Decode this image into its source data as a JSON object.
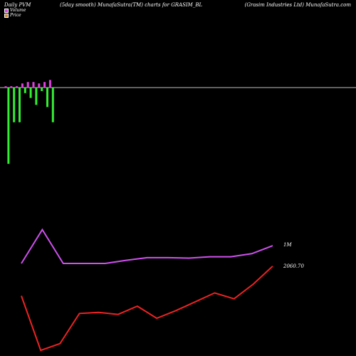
{
  "header": {
    "left": "Daily PVM",
    "middle": "(5day smooth) MunafaSutra(TM) charts for GRASIM_BL",
    "right": "(Grasim Industries Ltd) MunafaSutra.com"
  },
  "legend": [
    {
      "label": "Volume",
      "color": "#e040e0"
    },
    {
      "label": "Price",
      "color": "#d08a30"
    }
  ],
  "colors": {
    "background": "#000000",
    "zero_line": "#c0c0c0",
    "bar_positive": "#e040e0",
    "bar_negative": "#33ee33",
    "volume_line": "#d050f0",
    "price_line": "#ee2222",
    "label_text": "#ffffff"
  },
  "chart_data": {
    "type": "bar",
    "title": "(5day smooth) MunafaSutra(TM) charts for GRASIM_BL",
    "pvm_bars": [
      {
        "value": 2,
        "sign": "+"
      },
      {
        "value": -110,
        "sign": "-"
      },
      {
        "value": 2,
        "sign": "+"
      },
      {
        "value": -50,
        "sign": "-"
      },
      {
        "value": 2,
        "sign": "+"
      },
      {
        "value": -50,
        "sign": "-"
      },
      {
        "value": 6,
        "sign": "+"
      },
      {
        "value": -8,
        "sign": "-"
      },
      {
        "value": 8,
        "sign": "+"
      },
      {
        "value": -15,
        "sign": "-"
      },
      {
        "value": 8,
        "sign": "+"
      },
      {
        "value": -25,
        "sign": "-"
      },
      {
        "value": 6,
        "sign": "+"
      },
      {
        "value": -5,
        "sign": "-"
      },
      {
        "value": 8,
        "sign": "+"
      },
      {
        "value": -28,
        "sign": "-"
      },
      {
        "value": 11,
        "sign": "+"
      },
      {
        "value": -50,
        "sign": "-"
      }
    ],
    "pvm_range": [
      -115,
      15
    ],
    "volume_series": {
      "label": "1M",
      "values": [
        1.0,
        1.76,
        1.0,
        1.0,
        1.0,
        1.07,
        1.13,
        1.13,
        1.12,
        1.15,
        1.15,
        1.22,
        1.4
      ],
      "range": [
        0.6,
        1.8
      ]
    },
    "price_series": {
      "label": "2060.70",
      "values": [
        1960,
        1775,
        1798,
        1900,
        1904,
        1897,
        1925,
        1884,
        1910,
        1940,
        1970,
        1950,
        2000,
        2060.7
      ],
      "range": [
        1780,
        2070
      ]
    }
  }
}
